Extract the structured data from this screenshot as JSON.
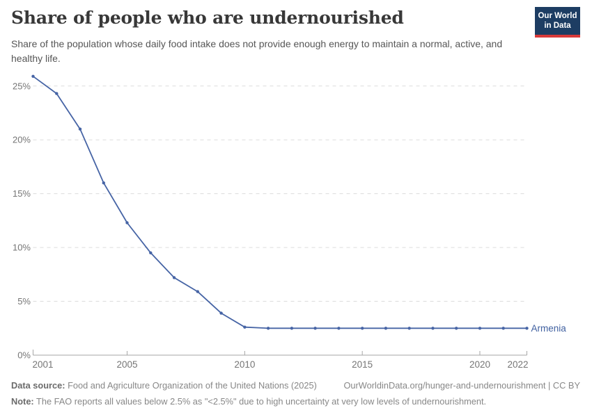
{
  "header": {
    "title": "Share of people who are undernourished",
    "subtitle": "Share of the population whose daily food intake does not provide enough energy to maintain a normal, active, and healthy life.",
    "logo": {
      "line1": "Our World",
      "line2": "in Data"
    },
    "logo_colors": {
      "background": "#1d3d63",
      "bar": "#d93a3a"
    }
  },
  "chart_data": {
    "type": "line",
    "title": "Share of people who are undernourished",
    "x": [
      2001,
      2002,
      2003,
      2004,
      2005,
      2006,
      2007,
      2008,
      2009,
      2010,
      2011,
      2012,
      2013,
      2014,
      2015,
      2016,
      2017,
      2018,
      2019,
      2020,
      2021,
      2022
    ],
    "series": [
      {
        "name": "Armenia",
        "values": [
          25.9,
          24.3,
          21.0,
          16.0,
          12.3,
          9.5,
          7.2,
          5.9,
          3.9,
          2.6,
          2.5,
          2.5,
          2.5,
          2.5,
          2.5,
          2.5,
          2.5,
          2.5,
          2.5,
          2.5,
          2.5,
          2.5
        ]
      }
    ],
    "xlabel": "",
    "ylabel": "",
    "xlim": [
      2001,
      2022
    ],
    "ylim": [
      0,
      26.5
    ],
    "xticks": [
      2001,
      2005,
      2010,
      2015,
      2020,
      2022
    ],
    "yticks": [
      0,
      5,
      10,
      15,
      20,
      25
    ],
    "ytick_labels": [
      "0%",
      "5%",
      "10%",
      "15%",
      "20%",
      "25%"
    ],
    "grid": true,
    "gridline_style": "dashed",
    "legend_position": "end-of-line",
    "line_color": "#4664a5",
    "label_color": "#4060a0"
  },
  "footer": {
    "datasource_label": "Data source:",
    "datasource_text": " Food and Agriculture Organization of the United Nations (2025)",
    "link_text": "OurWorldinData.org/hunger-and-undernourishment | CC BY",
    "note_label": "Note:",
    "note_text": " The FAO reports all values below 2.5% as \"<2.5%\" due to high uncertainty at very low levels of undernourishment."
  }
}
